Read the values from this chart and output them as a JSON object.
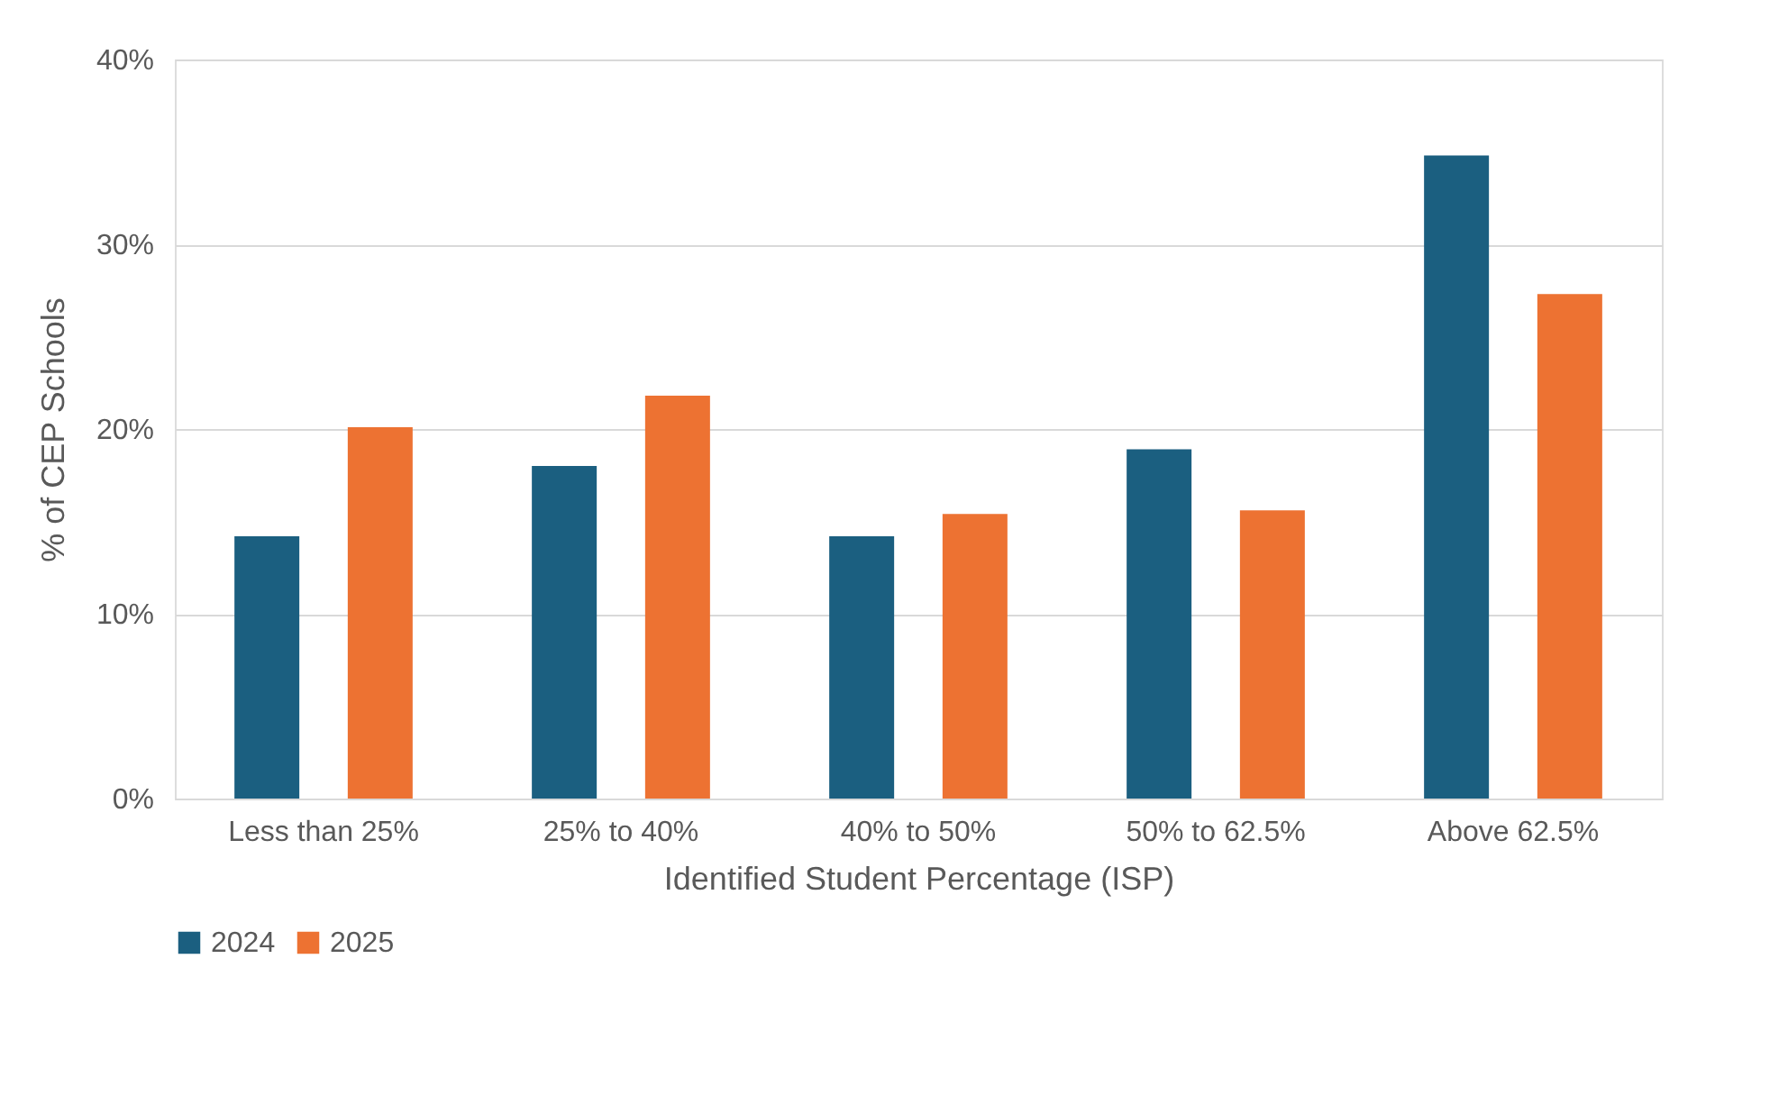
{
  "chart_data": {
    "type": "bar",
    "xlabel": "Identified Student Percentage (ISP)",
    "ylabel": "% of CEP Schools",
    "categories": [
      "Less than 25%",
      "25% to 40%",
      "40% to 50%",
      "50% to 62.5%",
      "Above 62.5%"
    ],
    "series": [
      {
        "name": "2024",
        "color": "#1b5f80",
        "values": [
          14.2,
          18.0,
          14.2,
          18.9,
          34.8
        ]
      },
      {
        "name": "2025",
        "color": "#ed7232",
        "values": [
          20.1,
          21.8,
          15.4,
          15.6,
          27.3
        ]
      }
    ],
    "ylim": [
      0,
      40
    ],
    "yticks": [
      {
        "value": 0,
        "label": "0%"
      },
      {
        "value": 10,
        "label": "10%"
      },
      {
        "value": 20,
        "label": "20%"
      },
      {
        "value": 30,
        "label": "30%"
      },
      {
        "value": 40,
        "label": "40%"
      }
    ],
    "grid": "y",
    "legend": "bottom"
  }
}
